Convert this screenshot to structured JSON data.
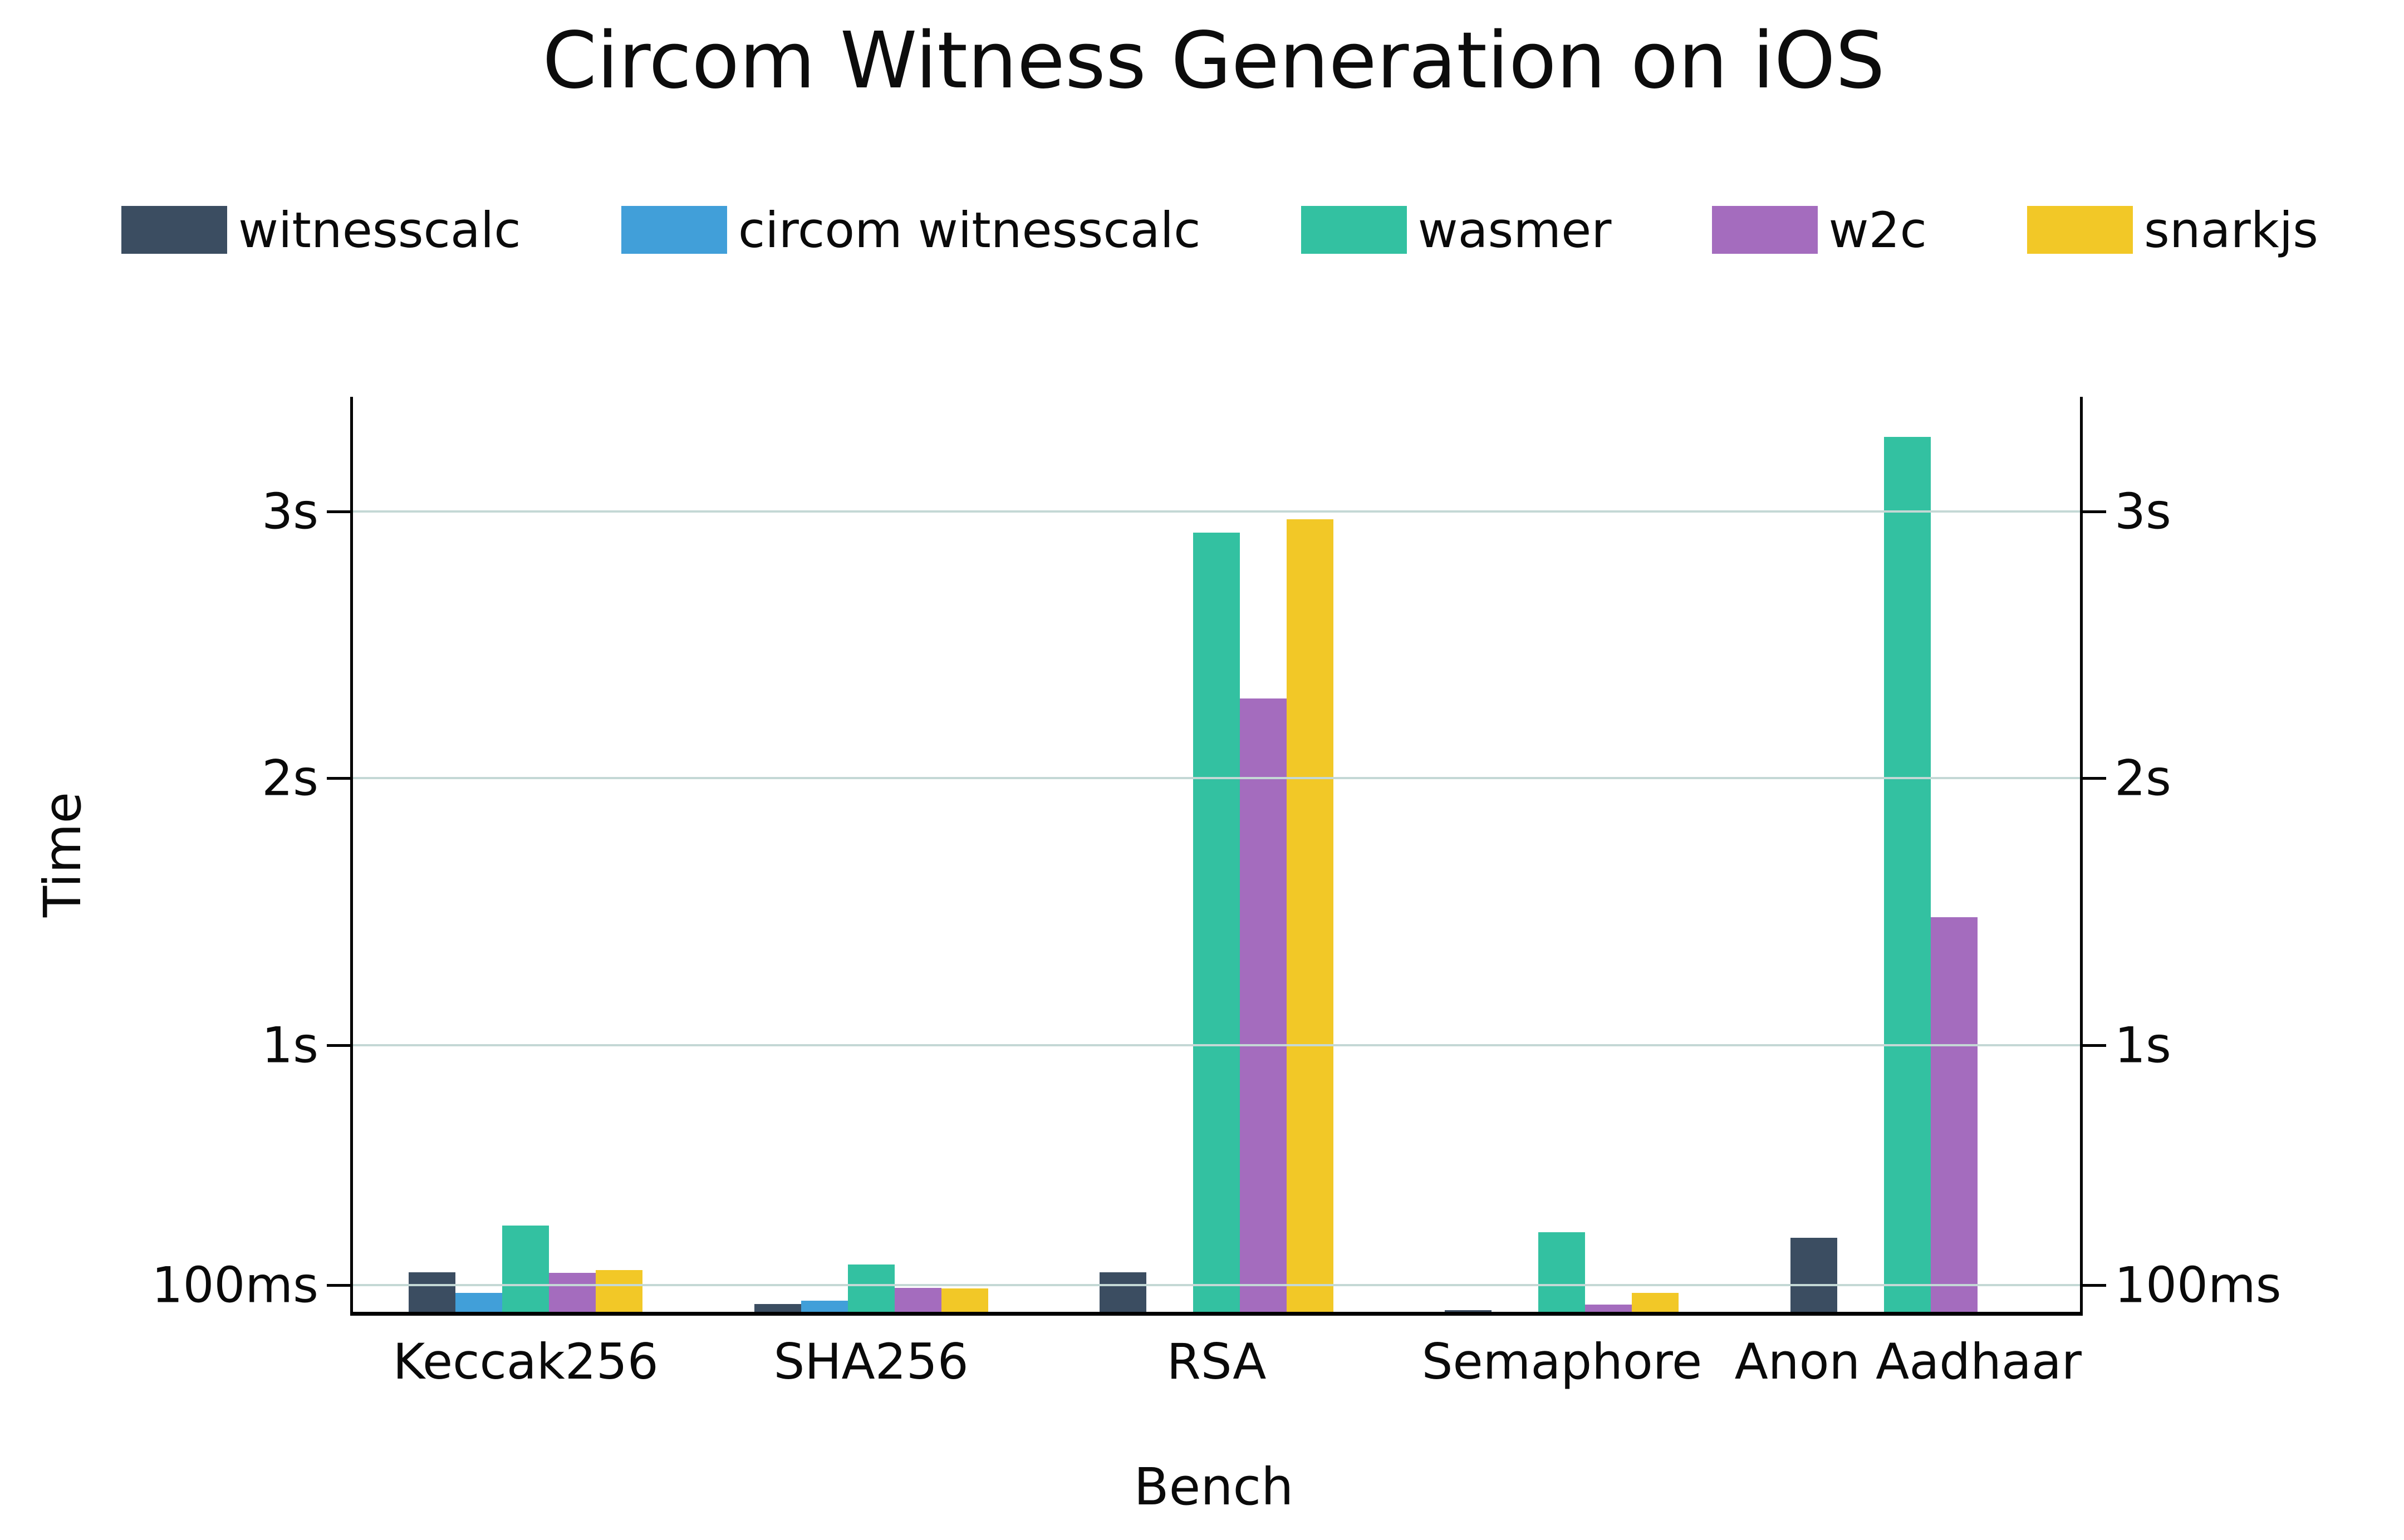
{
  "chart_data": {
    "type": "bar",
    "title": "Circom Witness Generation on iOS",
    "xlabel": "Bench",
    "ylabel": "Time",
    "categories": [
      "Keccak256",
      "SHA256",
      "RSA",
      "Semaphore",
      "Anon Aadhaar"
    ],
    "series": [
      {
        "name": "witnesscalc",
        "color": "#3b4d61",
        "values": [
          0.149,
          0.029,
          0.149,
          0.007,
          0.277
        ]
      },
      {
        "name": "circom witnesscalc",
        "color": "#419fd9",
        "values": [
          0.07,
          0.042,
          null,
          null,
          null
        ]
      },
      {
        "name": "wasmer",
        "color": "#33c1a1",
        "values": [
          0.323,
          0.178,
          2.92,
          0.298,
          3.28
        ]
      },
      {
        "name": "w2c",
        "color": "#a46cbe",
        "values": [
          0.146,
          0.09,
          2.3,
          0.028,
          1.48
        ]
      },
      {
        "name": "snarkjs",
        "color": "#f2c827",
        "values": [
          0.156,
          0.087,
          2.97,
          0.072,
          null
        ]
      }
    ],
    "y_ticks": [
      {
        "label": "100ms",
        "value": 0.1
      },
      {
        "label": "1s",
        "value": 1
      },
      {
        "label": "2s",
        "value": 2
      },
      {
        "label": "3s",
        "value": 3
      }
    ],
    "ylim": [
      0,
      3.43
    ],
    "grid": true,
    "gridline_color": "#c4d8d5",
    "legend_position": "top",
    "units": "seconds"
  }
}
